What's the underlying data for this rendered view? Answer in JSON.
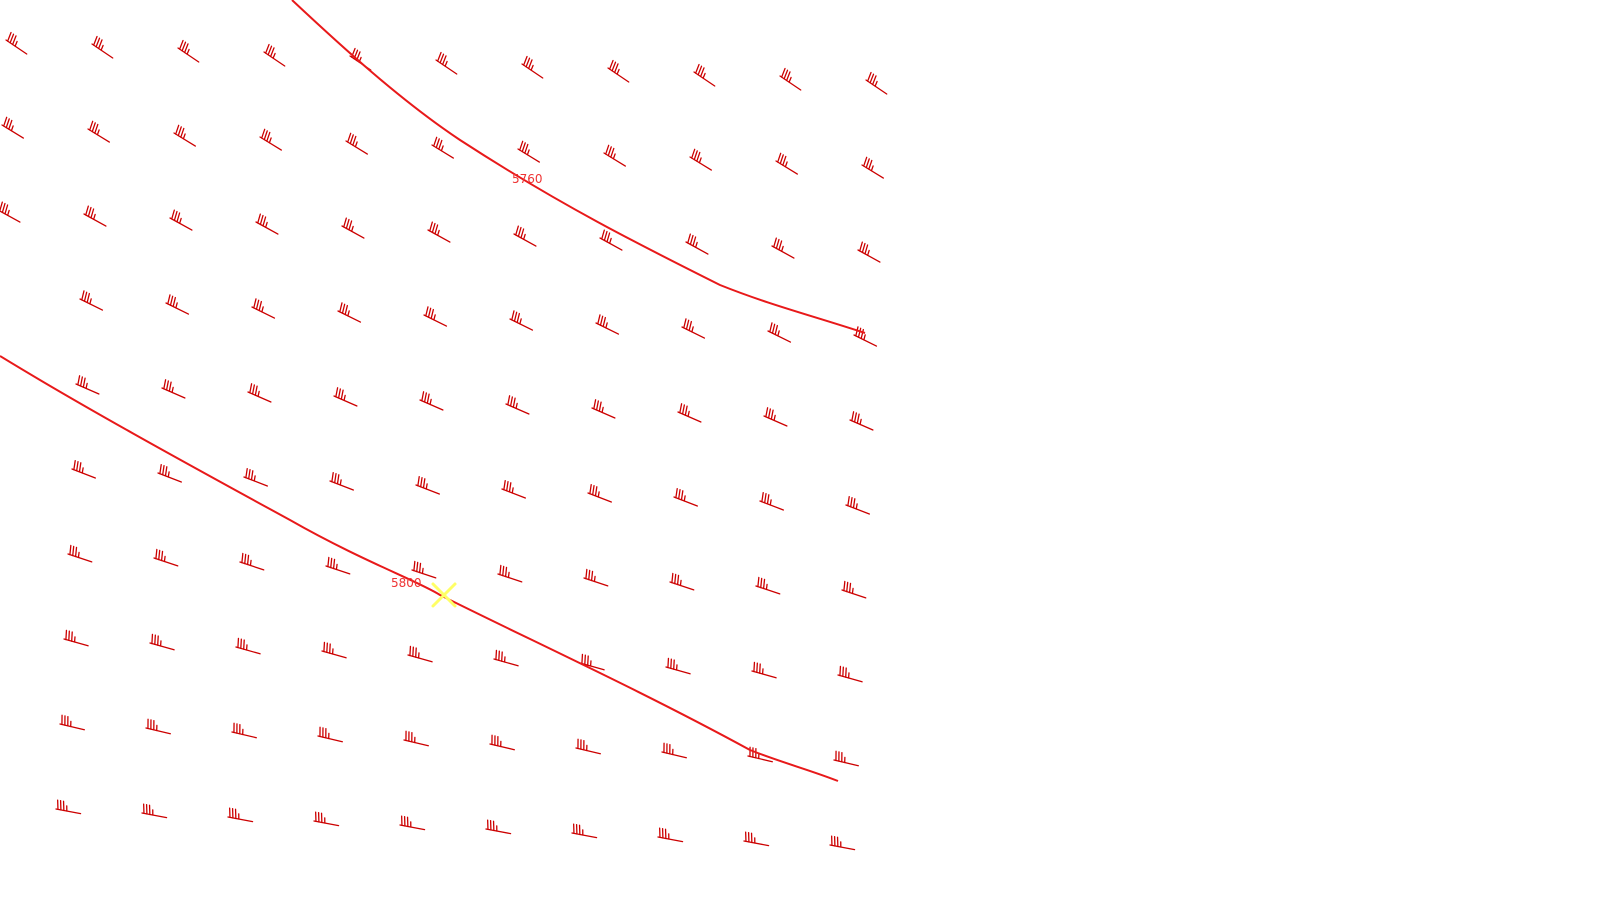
{
  "map": {
    "colors": {
      "background": "#ffffff",
      "contour": "#e8191a",
      "barb": "#cc0000",
      "label": "#ee3333",
      "marker": "#ffff66"
    },
    "contours": [
      {
        "id": "contour-5760",
        "label": "5760"
      },
      {
        "id": "contour-5800",
        "label": "5800"
      }
    ],
    "marker": {
      "icon": "x-marker-icon"
    },
    "wind_barbs": {
      "icon": "wind-barb-icon",
      "rows": 10,
      "cols": 11
    }
  }
}
